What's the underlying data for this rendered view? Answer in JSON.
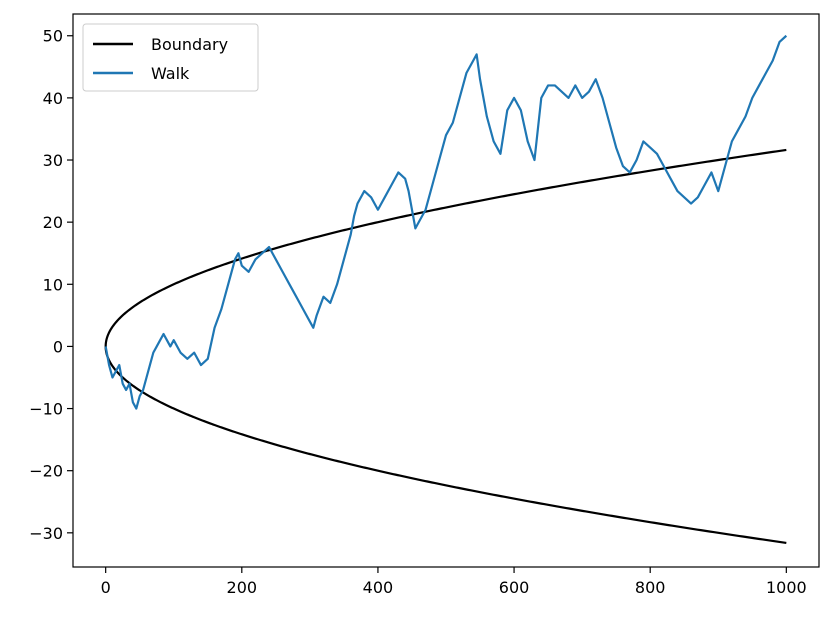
{
  "chart_data": {
    "type": "line",
    "title": "",
    "xlabel": "",
    "ylabel": "",
    "xlim": [
      -48,
      1048
    ],
    "ylim": [
      -35.5,
      53.5
    ],
    "xticks": [
      0,
      200,
      400,
      600,
      800,
      1000
    ],
    "yticks": [
      -30,
      -20,
      -10,
      0,
      10,
      20,
      30,
      40,
      50
    ],
    "xtick_labels": [
      "0",
      "200",
      "400",
      "600",
      "800",
      "1000"
    ],
    "ytick_labels": [
      "−30",
      "−20",
      "−10",
      "0",
      "10",
      "20",
      "30",
      "40",
      "50"
    ],
    "grid": false,
    "legend_position": "upper-left",
    "legend": [
      "Boundary",
      "Walk"
    ],
    "series": [
      {
        "name": "Boundary",
        "color": "#000000",
        "style": "solid",
        "function": "y = ±sqrt(x)",
        "x": [
          0,
          2,
          5,
          10,
          20,
          35,
          50,
          75,
          100,
          150,
          200,
          250,
          300,
          350,
          400,
          450,
          500,
          550,
          600,
          650,
          700,
          750,
          800,
          850,
          900,
          950,
          1000
        ],
        "upper": [
          0,
          1.41,
          2.24,
          3.16,
          4.47,
          5.92,
          7.07,
          8.66,
          10,
          12.25,
          14.14,
          15.81,
          17.32,
          18.71,
          20,
          21.21,
          22.36,
          23.45,
          24.49,
          25.5,
          26.46,
          27.39,
          28.28,
          29.15,
          30,
          30.82,
          31.62
        ],
        "lower": [
          0,
          -1.41,
          -2.24,
          -3.16,
          -4.47,
          -5.92,
          -7.07,
          -8.66,
          -10,
          -12.25,
          -14.14,
          -15.81,
          -17.32,
          -18.71,
          -20,
          -21.21,
          -22.36,
          -23.45,
          -24.49,
          -25.5,
          -26.46,
          -27.39,
          -28.28,
          -29.15,
          -30,
          -30.82,
          -31.62
        ]
      },
      {
        "name": "Walk",
        "color": "#1f77b4",
        "style": "solid",
        "x": [
          0,
          5,
          10,
          15,
          20,
          25,
          30,
          35,
          40,
          45,
          50,
          55,
          60,
          65,
          70,
          75,
          80,
          85,
          90,
          95,
          100,
          110,
          120,
          130,
          140,
          150,
          160,
          170,
          180,
          190,
          195,
          200,
          210,
          220,
          230,
          240,
          250,
          260,
          270,
          280,
          290,
          300,
          305,
          310,
          320,
          330,
          340,
          350,
          360,
          365,
          370,
          380,
          390,
          400,
          410,
          420,
          430,
          440,
          445,
          450,
          455,
          460,
          470,
          480,
          490,
          500,
          510,
          520,
          530,
          540,
          545,
          550,
          560,
          570,
          580,
          590,
          600,
          610,
          620,
          630,
          640,
          650,
          660,
          670,
          680,
          690,
          700,
          710,
          720,
          730,
          740,
          750,
          760,
          770,
          780,
          790,
          800,
          810,
          820,
          830,
          840,
          850,
          860,
          870,
          880,
          890,
          900,
          910,
          920,
          930,
          940,
          950,
          960,
          970,
          980,
          990,
          1000
        ],
        "y": [
          0,
          -3,
          -5,
          -4,
          -3,
          -6,
          -7,
          -6,
          -9,
          -10,
          -8,
          -7,
          -5,
          -3,
          -1,
          0,
          1,
          2,
          1,
          0,
          1,
          -1,
          -2,
          -1,
          -3,
          -2,
          3,
          6,
          10,
          14,
          15,
          13,
          12,
          14,
          15,
          16,
          14,
          12,
          10,
          8,
          6,
          4,
          3,
          5,
          8,
          7,
          10,
          14,
          18,
          21,
          23,
          25,
          24,
          22,
          24,
          26,
          28,
          27,
          25,
          22,
          19,
          20,
          22,
          26,
          30,
          34,
          36,
          40,
          44,
          46,
          47,
          43,
          37,
          33,
          31,
          38,
          40,
          38,
          33,
          30,
          40,
          42,
          42,
          41,
          40,
          42,
          40,
          41,
          43,
          40,
          36,
          32,
          29,
          28,
          30,
          33,
          32,
          31,
          29,
          27,
          25,
          24,
          23,
          24,
          26,
          28,
          25,
          29,
          33,
          35,
          37,
          40,
          42,
          44,
          46,
          49,
          50
        ]
      }
    ]
  }
}
